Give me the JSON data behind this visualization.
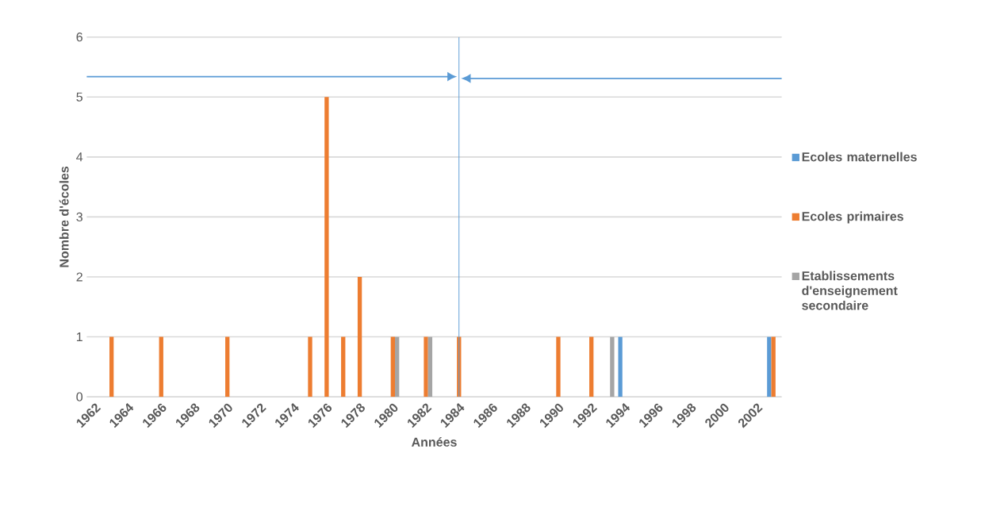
{
  "chart_data": {
    "type": "bar",
    "xlabel": "Années",
    "ylabel": "Nombre d'écoles",
    "series": [
      {
        "name": "Ecoles maternelles",
        "color": "#5b9bd5",
        "x": [
          1994,
          2003
        ],
        "values": [
          1,
          1
        ]
      },
      {
        "name": "Ecoles primaires",
        "color": "#ed7d31",
        "x": [
          1963,
          1966,
          1970,
          1975,
          1976,
          1977,
          1978,
          1980,
          1982,
          1984,
          1990,
          1992,
          2003
        ],
        "values": [
          1,
          1,
          1,
          1,
          5,
          1,
          2,
          1,
          1,
          1,
          1,
          1,
          1
        ]
      },
      {
        "name": "Etablissements d'enseignement secondaire",
        "color": "#a5a5a5",
        "x": [
          1980,
          1982,
          1993
        ],
        "values": [
          1,
          1,
          1
        ]
      }
    ],
    "xlim": [
      1961.5,
      2003.5
    ],
    "xticks": [
      1962,
      1964,
      1966,
      1968,
      1970,
      1972,
      1974,
      1976,
      1978,
      1980,
      1982,
      1984,
      1986,
      1988,
      1990,
      1992,
      1994,
      1996,
      1998,
      2000,
      2002
    ],
    "ylim": [
      0,
      6
    ],
    "yticks": [
      0,
      1,
      2,
      3,
      4,
      5,
      6
    ],
    "grid": "y",
    "legend": "right",
    "ref_lines": [
      {
        "axis": "x",
        "value": 1984,
        "color": "#5b9bd5"
      }
    ]
  }
}
